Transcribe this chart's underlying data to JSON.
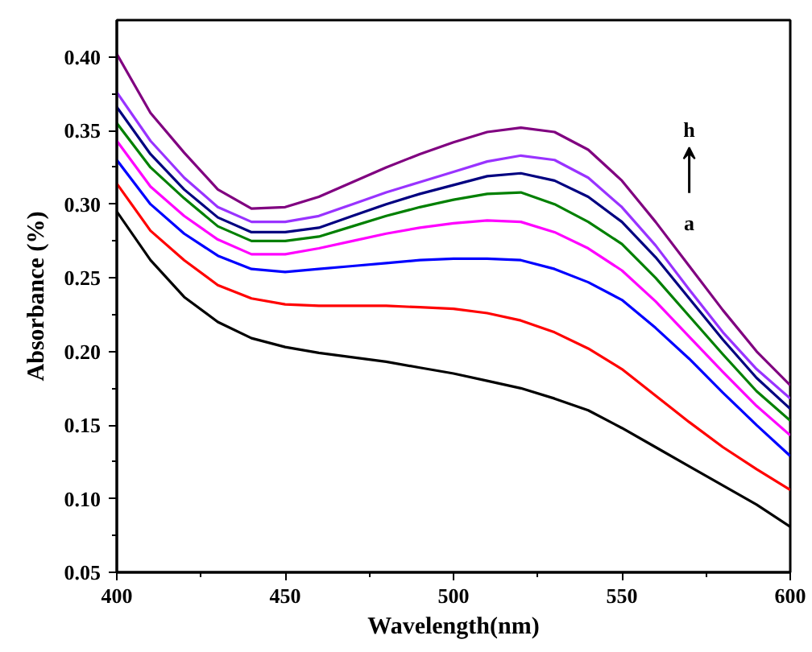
{
  "chart_data": {
    "type": "line",
    "xlabel": "Wavelength(nm)",
    "ylabel": "Absorbance (%)",
    "x": [
      400,
      410,
      420,
      430,
      440,
      450,
      460,
      470,
      480,
      490,
      500,
      510,
      520,
      530,
      540,
      550,
      560,
      570,
      580,
      590,
      600
    ],
    "series": [
      {
        "color": "#000000",
        "values": [
          0.295,
          0.262,
          0.237,
          0.22,
          0.209,
          0.203,
          0.199,
          0.196,
          0.193,
          0.189,
          0.185,
          0.18,
          0.175,
          0.168,
          0.16,
          0.148,
          0.135,
          0.122,
          0.109,
          0.096,
          0.081
        ]
      },
      {
        "color": "#ff0000",
        "values": [
          0.314,
          0.282,
          0.262,
          0.245,
          0.236,
          0.232,
          0.231,
          0.231,
          0.231,
          0.23,
          0.229,
          0.226,
          0.221,
          0.213,
          0.202,
          0.188,
          0.17,
          0.152,
          0.135,
          0.12,
          0.106
        ]
      },
      {
        "color": "#0000ff",
        "values": [
          0.33,
          0.3,
          0.28,
          0.265,
          0.256,
          0.254,
          0.256,
          0.258,
          0.26,
          0.262,
          0.263,
          0.263,
          0.262,
          0.256,
          0.247,
          0.235,
          0.216,
          0.195,
          0.172,
          0.15,
          0.129
        ]
      },
      {
        "color": "#ff00ff",
        "values": [
          0.343,
          0.312,
          0.292,
          0.276,
          0.266,
          0.266,
          0.27,
          0.275,
          0.28,
          0.284,
          0.287,
          0.289,
          0.288,
          0.281,
          0.27,
          0.255,
          0.234,
          0.21,
          0.186,
          0.163,
          0.143
        ]
      },
      {
        "color": "#008000",
        "values": [
          0.355,
          0.325,
          0.304,
          0.285,
          0.275,
          0.275,
          0.278,
          0.285,
          0.292,
          0.298,
          0.303,
          0.307,
          0.308,
          0.3,
          0.288,
          0.273,
          0.25,
          0.224,
          0.198,
          0.173,
          0.153
        ]
      },
      {
        "color": "#000080",
        "values": [
          0.366,
          0.334,
          0.31,
          0.291,
          0.281,
          0.281,
          0.284,
          0.292,
          0.3,
          0.307,
          0.313,
          0.319,
          0.321,
          0.316,
          0.305,
          0.288,
          0.264,
          0.236,
          0.208,
          0.182,
          0.161
        ]
      },
      {
        "color": "#9933ff",
        "values": [
          0.376,
          0.343,
          0.318,
          0.298,
          0.288,
          0.288,
          0.292,
          0.3,
          0.308,
          0.315,
          0.322,
          0.329,
          0.333,
          0.33,
          0.318,
          0.298,
          0.272,
          0.242,
          0.213,
          0.188,
          0.168
        ]
      },
      {
        "color": "#800080",
        "values": [
          0.402,
          0.362,
          0.335,
          0.31,
          0.297,
          0.298,
          0.305,
          0.315,
          0.325,
          0.334,
          0.342,
          0.349,
          0.352,
          0.349,
          0.337,
          0.316,
          0.288,
          0.258,
          0.228,
          0.2,
          0.177
        ]
      }
    ],
    "xlim": [
      400,
      600
    ],
    "ylim": [
      0.05,
      0.425
    ],
    "xticks": [
      400,
      {
        "value": 425,
        "label": null
      },
      450,
      {
        "value": 475,
        "label": null
      },
      500,
      {
        "value": 525,
        "label": null
      },
      550,
      {
        "value": 575,
        "label": null
      },
      600
    ],
    "yticks": [
      {
        "value": 0.05,
        "label": "0.05"
      },
      {
        "value": 0.075,
        "label": null
      },
      {
        "value": 0.1,
        "label": "0.10"
      },
      {
        "value": 0.125,
        "label": null
      },
      {
        "value": 0.15,
        "label": "0.15"
      },
      {
        "value": 0.175,
        "label": null
      },
      {
        "value": 0.2,
        "label": "0.20"
      },
      {
        "value": 0.225,
        "label": null
      },
      {
        "value": 0.25,
        "label": "0.25"
      },
      {
        "value": 0.275,
        "label": null
      },
      {
        "value": 0.3,
        "label": "0.30"
      },
      {
        "value": 0.325,
        "label": null
      },
      {
        "value": 0.35,
        "label": "0.35"
      },
      {
        "value": 0.375,
        "label": null
      },
      {
        "value": 0.4,
        "label": "0.40"
      }
    ],
    "annotations": [
      "h",
      "a"
    ],
    "grid": false,
    "line_style": "solid"
  }
}
